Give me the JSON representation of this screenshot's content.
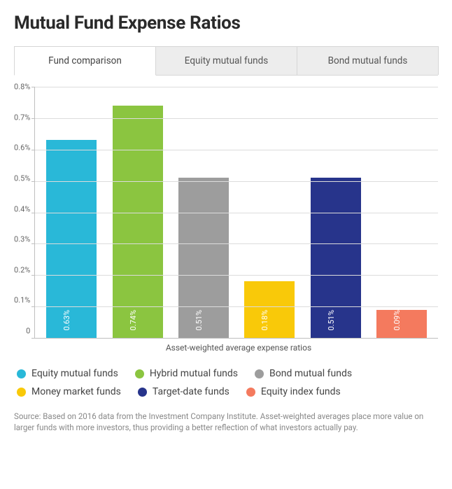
{
  "title": "Mutual Fund Expense Ratios",
  "tabs": [
    {
      "label": "Fund comparison",
      "active": true
    },
    {
      "label": "Equity mutual funds",
      "active": false
    },
    {
      "label": "Bond mutual funds",
      "active": false
    }
  ],
  "chart": {
    "type": "bar",
    "x_axis_title": "Asset-weighted average expense ratios",
    "ymin": 0,
    "ymax": 0.8,
    "ytick_step": 0.1,
    "yticks": [
      "0.8%",
      "0.7%",
      "0.6%",
      "0.5%",
      "0.4%",
      "0.3%",
      "0.2%",
      "0.1%",
      "0"
    ],
    "grid_color": "#dcdcdc",
    "axis_color": "#bfbfbf",
    "background_color": "#ffffff",
    "bar_label_color": "#ffffff",
    "bar_label_fontsize": 11,
    "series": [
      {
        "name": "Equity mutual funds",
        "value": 0.63,
        "label": "0.63%",
        "color": "#29b8d8"
      },
      {
        "name": "Hybrid mutual funds",
        "value": 0.74,
        "label": "0.74%",
        "color": "#8bc540"
      },
      {
        "name": "Bond mutual funds",
        "value": 0.51,
        "label": "0.51%",
        "color": "#9d9d9d"
      },
      {
        "name": "Money market funds",
        "value": 0.18,
        "label": "0.18%",
        "color": "#f9c909"
      },
      {
        "name": "Target-date funds",
        "value": 0.51,
        "label": "0.51%",
        "color": "#27348b"
      },
      {
        "name": "Equity index funds",
        "value": 0.09,
        "label": "0.09%",
        "color": "#f47a5e"
      }
    ]
  },
  "legend_fontsize": 14,
  "source_text": "Source: Based on 2016 data from the Investment Company Institute. Asset-weighted averages place more value on larger funds with more investors, thus providing a better reflection of what investors actually pay.",
  "source_color": "#888888"
}
